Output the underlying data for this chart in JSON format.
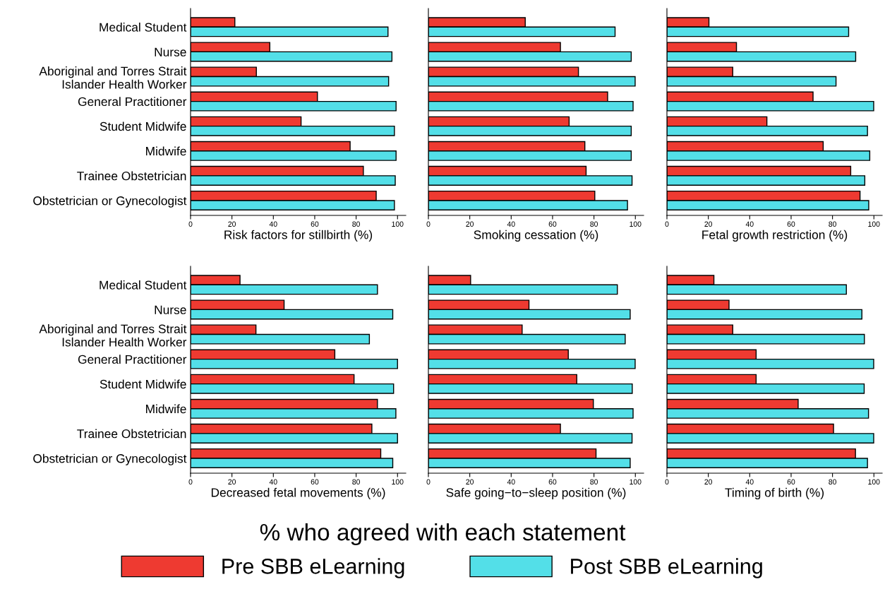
{
  "chart_data": [
    {
      "type": "bar",
      "orientation": "horizontal",
      "categories": [
        "Medical Student",
        "Nurse",
        "Aboriginal and Torres Strait\nIslander Health Worker",
        "General Practitioner",
        "Student Midwife",
        "Midwife",
        "Trainee Obstetrician",
        "Obstetrician or Gynecologist"
      ],
      "xlabel": "Risk factors for stillbirth (%)",
      "xlim": [
        0,
        104
      ],
      "xticks": [
        0,
        20,
        40,
        60,
        80,
        100
      ],
      "legend": "bottom",
      "legend_title": "% who agreed with each statement",
      "series": [
        {
          "name": "Pre SBB eLearning",
          "color": "#ee3a31",
          "values": [
            21.4,
            38.3,
            31.8,
            61.3,
            53.4,
            77.1,
            83.5,
            89.7
          ]
        },
        {
          "name": "Post SBB eLearning",
          "color": "#53dfe8",
          "values": [
            95.4,
            97.3,
            95.7,
            99.3,
            98.5,
            99.3,
            98.9,
            98.5
          ]
        }
      ]
    },
    {
      "type": "bar",
      "orientation": "horizontal",
      "categories": [
        null,
        null,
        null,
        null,
        null,
        null,
        null,
        null
      ],
      "xlabel": "Smoking cessation (%)",
      "xlim": [
        0,
        104
      ],
      "xticks": [
        0,
        20,
        40,
        60,
        80,
        100
      ],
      "tick_labels": "x",
      "series": [
        {
          "color": "#ee3a31",
          "values": [
            46.8,
            63.8,
            72.5,
            86.6,
            68.0,
            75.6,
            76.2,
            80.4
          ]
        },
        {
          "color": "#53dfe8",
          "values": [
            90.2,
            98.0,
            99.9,
            98.9,
            98.0,
            98.0,
            98.4,
            96.2
          ]
        }
      ]
    },
    {
      "type": "bar",
      "orientation": "horizontal",
      "categories": [
        null,
        null,
        null,
        null,
        null,
        null,
        null,
        null
      ],
      "xlabel": "Fetal growth restriction (%)",
      "xlim": [
        0,
        104
      ],
      "xticks": [
        0,
        20,
        40,
        60,
        80,
        100
      ],
      "tick_labels": "x",
      "series": [
        {
          "color": "#ee3a31",
          "values": [
            20.3,
            33.6,
            31.8,
            70.6,
            48.3,
            75.5,
            88.8,
            93.3
          ]
        },
        {
          "color": "#53dfe8",
          "values": [
            87.8,
            91.2,
            81.7,
            99.9,
            96.9,
            98.0,
            95.6,
            97.5
          ]
        }
      ]
    },
    {
      "type": "bar",
      "orientation": "horizontal",
      "categories": [
        "Medical Student",
        "Nurse",
        "Aboriginal and Torres Strait\nIslander Health Worker",
        "General Practitioner",
        "Student Midwife",
        "Midwife",
        "Trainee Obstetrician",
        "Obstetrician or Gynecologist"
      ],
      "xlabel": "Decreased fetal movements (%)",
      "xlim": [
        0,
        104
      ],
      "xticks": [
        0,
        20,
        40,
        60,
        80,
        100
      ],
      "series": [
        {
          "color": "#ee3a31",
          "values": [
            23.9,
            45.2,
            31.6,
            69.7,
            79.0,
            90.3,
            87.6,
            91.9
          ]
        },
        {
          "color": "#53dfe8",
          "values": [
            90.3,
            97.7,
            86.4,
            100,
            98.1,
            99.2,
            100,
            97.7
          ]
        }
      ]
    },
    {
      "type": "bar",
      "orientation": "horizontal",
      "categories": [
        null,
        null,
        null,
        null,
        null,
        null,
        null,
        null
      ],
      "xlabel": "Safe going−to−sleep position (%)",
      "xlim": [
        0,
        104
      ],
      "xticks": [
        0,
        20,
        40,
        60,
        80,
        100
      ],
      "tick_labels": "x",
      "series": [
        {
          "color": "#ee3a31",
          "values": [
            20.4,
            48.6,
            45.3,
            67.6,
            71.7,
            79.7,
            63.8,
            81.0
          ]
        },
        {
          "color": "#53dfe8",
          "values": [
            91.3,
            97.5,
            95.1,
            99.9,
            98.5,
            98.9,
            98.4,
            97.5
          ]
        }
      ]
    },
    {
      "type": "bar",
      "orientation": "horizontal",
      "categories": [
        null,
        null,
        null,
        null,
        null,
        null,
        null,
        null
      ],
      "xlabel": "Timing of birth (%)",
      "xlim": [
        0,
        104
      ],
      "xticks": [
        0,
        20,
        40,
        60,
        80,
        100
      ],
      "tick_labels": "x",
      "series": [
        {
          "color": "#ee3a31",
          "values": [
            22.7,
            30.0,
            31.8,
            43.1,
            43.1,
            63.4,
            80.5,
            91.1
          ]
        },
        {
          "color": "#53dfe8",
          "values": [
            86.7,
            94.2,
            95.4,
            99.9,
            95.3,
            97.4,
            99.9,
            96.9
          ]
        }
      ]
    }
  ]
}
